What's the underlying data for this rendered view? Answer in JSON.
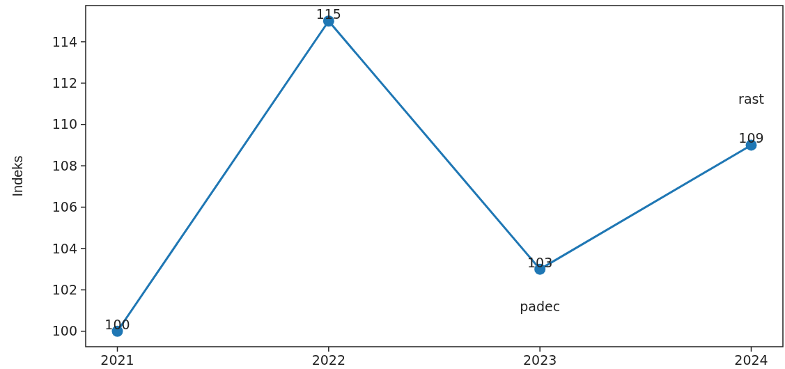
{
  "chart_data": {
    "type": "line",
    "ylabel": "Indeks",
    "x": [
      2021,
      2022,
      2023,
      2024
    ],
    "series": [
      {
        "color": "#1f77b4",
        "values": [
          100,
          115,
          103,
          109
        ]
      }
    ],
    "xlim": [
      2020.85,
      2024.15
    ],
    "xticks": [
      2021,
      2022,
      2023,
      2024
    ],
    "ylim": [
      99.25,
      115.75
    ],
    "yticks": [
      100,
      102,
      104,
      106,
      108,
      110,
      112,
      114
    ],
    "marker": "circle",
    "line_style": "solid",
    "data_labels": true,
    "annotations": [
      {
        "text": "rast",
        "x": 2024,
        "y": 109
      },
      {
        "text": "padec",
        "x": 2023,
        "y": 103
      }
    ]
  }
}
